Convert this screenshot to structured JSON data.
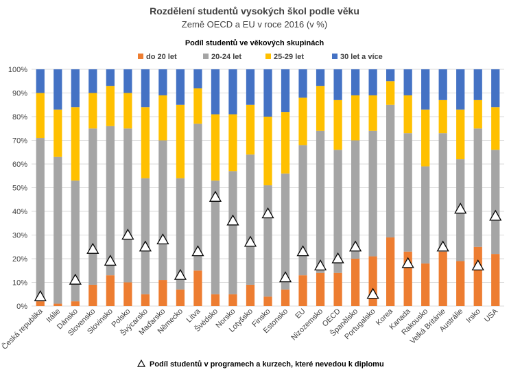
{
  "chart_data": {
    "type": "bar",
    "stacked": true,
    "title": "Rozdělení studentů vysokých škol podle věku",
    "subtitle": "Země OECD a EU v roce 2016 (v %)",
    "legend_title": "Podíl studentů ve věkových skupinách",
    "legend_placement": "top",
    "ylim": [
      0,
      100
    ],
    "y_ticks": [
      "0%",
      "10%",
      "20%",
      "30%",
      "40%",
      "50%",
      "60%",
      "70%",
      "80%",
      "90%",
      "100%"
    ],
    "grid": true,
    "categories": [
      "Česká republika",
      "Itálie",
      "Dánsko",
      "Slovensko",
      "Slovinsko",
      "Polsko",
      "Švýcarsko",
      "Maďarsko",
      "Německo",
      "Litva",
      "Švédsko",
      "Norsko",
      "Lotyšsko",
      "Finsko",
      "Estonsko",
      "EU",
      "Nizozemsko",
      "OECD",
      "Španělsko",
      "Portugalsko",
      "Korea",
      "Kanada",
      "Rakousko",
      "Velká Británie",
      "Austrálie",
      "Irsko",
      "USA"
    ],
    "series": [
      {
        "name": "do 20 let",
        "color": "#ED7D31",
        "values": [
          2,
          1,
          2,
          9,
          13,
          10,
          5,
          11,
          7,
          15,
          5,
          5,
          9,
          4,
          7,
          13,
          14,
          14,
          20,
          21,
          29,
          23,
          18,
          23,
          19,
          25,
          22
        ]
      },
      {
        "name": "20-24 let",
        "color": "#A5A5A5",
        "values": [
          69,
          62,
          51,
          66,
          63,
          65,
          49,
          59,
          47,
          62,
          48,
          52,
          55,
          47,
          49,
          55,
          60,
          52,
          50,
          53,
          56,
          50,
          41,
          50,
          43,
          50,
          44
        ]
      },
      {
        "name": "25-29 let",
        "color": "#FFC000",
        "values": [
          19,
          20,
          31,
          15,
          17,
          15,
          30,
          19,
          31,
          15,
          28,
          24,
          21,
          29,
          26,
          20,
          19,
          21,
          19,
          15,
          10,
          16,
          24,
          14,
          21,
          12,
          18
        ]
      },
      {
        "name": "30 let a více",
        "color": "#4472C4",
        "values": [
          10,
          17,
          16,
          10,
          7,
          10,
          16,
          11,
          15,
          8,
          19,
          19,
          15,
          20,
          18,
          12,
          7,
          13,
          11,
          11,
          5,
          11,
          17,
          13,
          17,
          13,
          16
        ]
      }
    ],
    "markers": {
      "name": "Podíl studentů v programech a kurzech, které nevedou k diplomu",
      "shape": "triangle",
      "values": [
        4,
        null,
        11,
        24,
        19,
        30,
        25,
        28,
        13,
        23,
        46,
        36,
        27,
        39,
        12,
        23,
        17,
        20,
        25,
        5,
        null,
        18,
        null,
        25,
        41,
        17,
        38
      ]
    }
  }
}
